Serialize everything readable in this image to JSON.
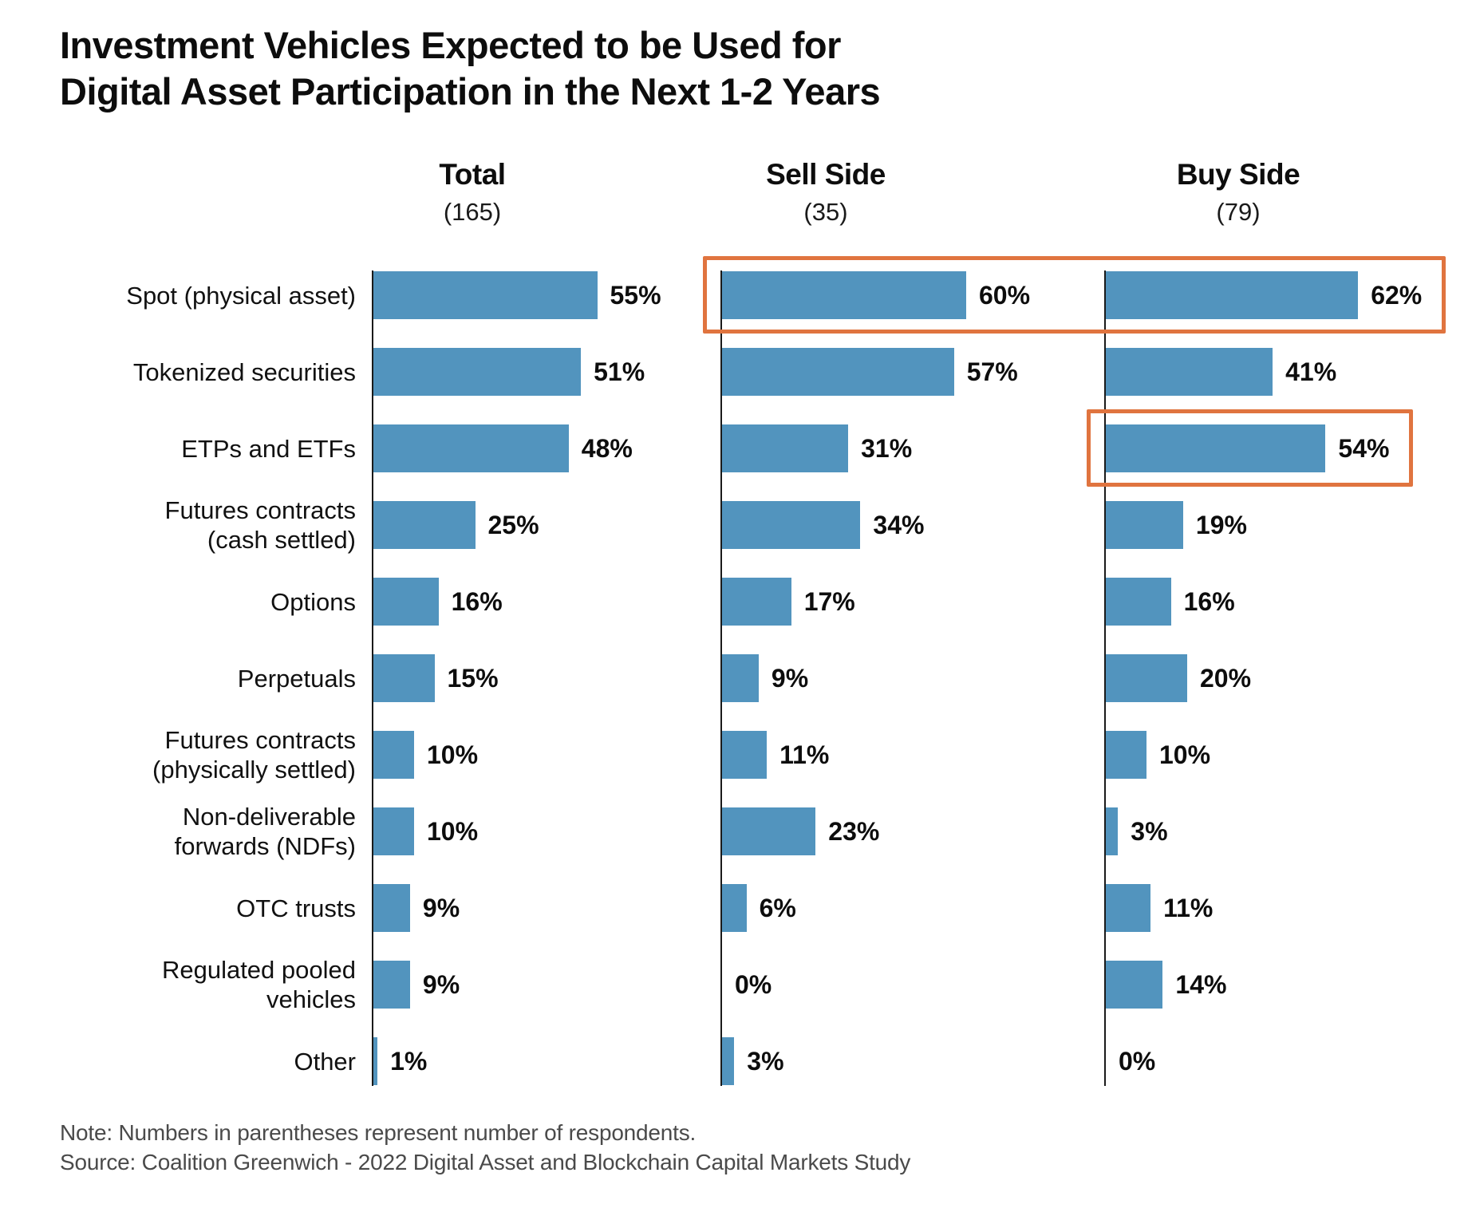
{
  "title": "Investment Vehicles Expected to be Used for\nDigital Asset Participation in the Next 1-2 Years",
  "note": "Note: Numbers in parentheses represent number of respondents.",
  "source": "Source: Coalition Greenwich - 2022 Digital Asset and Blockchain Capital Markets Study",
  "colors": {
    "bar": "#5294be",
    "highlight": "#e0743f"
  },
  "chart_data": {
    "type": "bar",
    "orientation": "horizontal",
    "value_suffix": "%",
    "categories": [
      "Spot (physical asset)",
      "Tokenized securities",
      "ETPs and ETFs",
      "Futures contracts\n(cash settled)",
      "Options",
      "Perpetuals",
      "Futures contracts\n(physically settled)",
      "Non-deliverable\nforwards (NDFs)",
      "OTC trusts",
      "Regulated pooled\nvehicles",
      "Other"
    ],
    "series": [
      {
        "name": "Total",
        "count": "(165)",
        "values": [
          55,
          51,
          48,
          25,
          16,
          15,
          10,
          10,
          9,
          9,
          1
        ]
      },
      {
        "name": "Sell Side",
        "count": "(35)",
        "values": [
          60,
          57,
          31,
          34,
          17,
          9,
          11,
          23,
          6,
          0,
          3
        ]
      },
      {
        "name": "Buy Side",
        "count": "(79)",
        "values": [
          62,
          41,
          54,
          19,
          16,
          20,
          10,
          3,
          11,
          14,
          0
        ]
      }
    ],
    "highlights": [
      {
        "category": "Spot (physical asset)",
        "series": [
          "Sell Side",
          "Buy Side"
        ]
      },
      {
        "category": "ETPs and ETFs",
        "series": [
          "Buy Side"
        ]
      }
    ],
    "xlim": [
      0,
      70
    ],
    "grid": false,
    "legend": "column-headers"
  }
}
